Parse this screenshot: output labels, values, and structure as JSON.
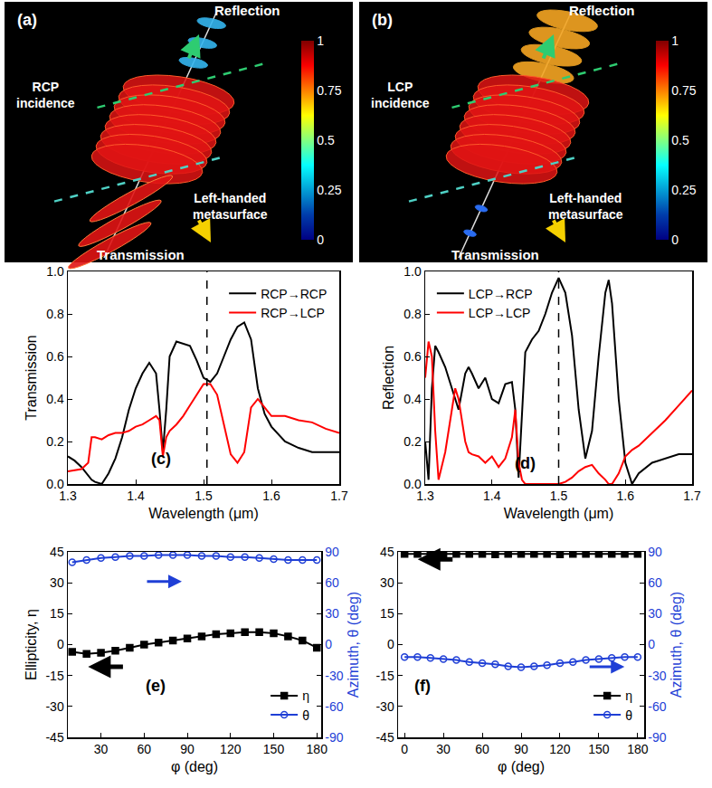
{
  "diagrams": [
    {
      "label": "(a)",
      "reflection": "Reflection",
      "incidence": [
        "RCP",
        "incidence"
      ],
      "metasurface": [
        "Left-handed",
        "metasurface"
      ],
      "transmission": "Transmission",
      "colorbar": {
        "range": [
          0,
          1
        ],
        "ticks": [
          0,
          0.25,
          0.5,
          0.75,
          1
        ]
      }
    },
    {
      "label": "(b)",
      "reflection": "Reflection",
      "incidence": [
        "LCP",
        "incidence"
      ],
      "metasurface": [
        "Left-handed",
        "metasurface"
      ],
      "transmission": "Transmission",
      "colorbar": {
        "range": [
          0,
          1
        ],
        "ticks": [
          0,
          0.25,
          0.5,
          0.75,
          1
        ]
      }
    }
  ],
  "chart_data": [
    {
      "type": "line",
      "label": "(c)",
      "x_label": "Wavelength (μm)",
      "y_label": "Transmission",
      "xlim": [
        1.3,
        1.7
      ],
      "xticks": [
        1.3,
        1.4,
        1.5,
        1.6,
        1.7
      ],
      "ylim": [
        0,
        1
      ],
      "yticks": [
        {
          "value": 0,
          "label": "0.0"
        },
        0.2,
        0.4,
        0.6,
        0.8,
        {
          "value": 1,
          "label": "1.0"
        }
      ],
      "legend": "upper right",
      "vline": 1.505,
      "x": [
        1.3,
        1.31,
        1.32,
        1.33,
        1.335,
        1.34,
        1.35,
        1.36,
        1.37,
        1.38,
        1.39,
        1.4,
        1.41,
        1.42,
        1.43,
        1.435,
        1.44,
        1.445,
        1.45,
        1.46,
        1.47,
        1.48,
        1.49,
        1.5,
        1.51,
        1.52,
        1.53,
        1.54,
        1.55,
        1.56,
        1.57,
        1.58,
        1.59,
        1.6,
        1.62,
        1.64,
        1.66,
        1.68,
        1.7
      ],
      "series": [
        {
          "name": "RCP→RCP",
          "color": "#000000",
          "values": [
            0.13,
            0.11,
            0.08,
            0.04,
            0.02,
            0.01,
            0.0,
            0.05,
            0.12,
            0.22,
            0.35,
            0.45,
            0.52,
            0.57,
            0.52,
            0.35,
            0.15,
            0.35,
            0.6,
            0.67,
            0.66,
            0.65,
            0.58,
            0.5,
            0.48,
            0.52,
            0.6,
            0.68,
            0.74,
            0.76,
            0.68,
            0.45,
            0.33,
            0.27,
            0.2,
            0.17,
            0.15,
            0.15,
            0.15
          ]
        },
        {
          "name": "RCP→LCP",
          "color": "#ff0000",
          "values": [
            0.06,
            0.065,
            0.07,
            0.1,
            0.22,
            0.22,
            0.21,
            0.23,
            0.24,
            0.24,
            0.25,
            0.27,
            0.28,
            0.3,
            0.32,
            0.3,
            0.13,
            0.22,
            0.25,
            0.28,
            0.32,
            0.37,
            0.42,
            0.47,
            0.47,
            0.42,
            0.28,
            0.14,
            0.1,
            0.15,
            0.36,
            0.4,
            0.36,
            0.32,
            0.32,
            0.3,
            0.29,
            0.26,
            0.24
          ]
        }
      ]
    },
    {
      "type": "line",
      "label": "(d)",
      "x_label": "Wavelength (μm)",
      "y_label": "Reflection",
      "xlim": [
        1.3,
        1.7
      ],
      "xticks": [
        1.3,
        1.4,
        1.5,
        1.6,
        1.7
      ],
      "ylim": [
        0,
        1
      ],
      "yticks": [
        {
          "value": 0,
          "label": "0.0"
        },
        0.2,
        0.4,
        0.6,
        0.8,
        {
          "value": 1,
          "label": "1.0"
        }
      ],
      "legend": "upper left",
      "vline": 1.5,
      "x": [
        1.3,
        1.305,
        1.31,
        1.315,
        1.32,
        1.33,
        1.34,
        1.345,
        1.35,
        1.36,
        1.365,
        1.37,
        1.38,
        1.39,
        1.4,
        1.41,
        1.42,
        1.43,
        1.435,
        1.44,
        1.445,
        1.45,
        1.46,
        1.47,
        1.48,
        1.49,
        1.5,
        1.51,
        1.52,
        1.53,
        1.54,
        1.55,
        1.56,
        1.57,
        1.575,
        1.58,
        1.59,
        1.6,
        1.61,
        1.62,
        1.64,
        1.66,
        1.68,
        1.7
      ],
      "series": [
        {
          "name": "LCP→RCP",
          "color": "#000000",
          "values": [
            0.2,
            0.02,
            0.45,
            0.65,
            0.62,
            0.55,
            0.45,
            0.4,
            0.35,
            0.52,
            0.55,
            0.52,
            0.45,
            0.5,
            0.4,
            0.38,
            0.47,
            0.48,
            0.35,
            0.03,
            0.35,
            0.62,
            0.68,
            0.72,
            0.8,
            0.9,
            0.97,
            0.9,
            0.7,
            0.35,
            0.12,
            0.25,
            0.6,
            0.9,
            0.96,
            0.85,
            0.4,
            0.1,
            0.0,
            0.05,
            0.1,
            0.12,
            0.14,
            0.14
          ]
        },
        {
          "name": "LCP→LCP",
          "color": "#ff0000",
          "values": [
            0.5,
            0.67,
            0.6,
            0.25,
            0.02,
            0.15,
            0.35,
            0.45,
            0.4,
            0.2,
            0.15,
            0.14,
            0.13,
            0.1,
            0.13,
            0.08,
            0.12,
            0.22,
            0.35,
            0.1,
            0.02,
            0.0,
            0.0,
            0.0,
            0.0,
            0.0,
            0.0,
            0.01,
            0.03,
            0.06,
            0.08,
            0.09,
            0.05,
            0.02,
            0.0,
            0.0,
            0.05,
            0.13,
            0.16,
            0.18,
            0.24,
            0.3,
            0.37,
            0.44
          ]
        }
      ]
    },
    {
      "type": "line",
      "label": "(e)",
      "x_label": "φ (deg)",
      "y_label": "Ellipticity, η",
      "y2_label": "Azimuth, θ (deg)",
      "xlim": [
        7,
        183
      ],
      "xticks": [
        30,
        60,
        90,
        120,
        150,
        180
      ],
      "ylim": [
        -45,
        45
      ],
      "yticks": [
        -45,
        -30,
        -15,
        0,
        15,
        30,
        45
      ],
      "y2lim": [
        -90,
        90
      ],
      "y2ticks": [
        -90,
        -60,
        -30,
        0,
        30,
        60,
        90
      ],
      "legend": "lower right",
      "x": [
        10,
        20,
        30,
        40,
        50,
        60,
        70,
        80,
        90,
        100,
        110,
        120,
        130,
        140,
        150,
        160,
        170,
        180
      ],
      "series": [
        {
          "name": "η",
          "color": "#000000",
          "marker": "square",
          "values": [
            -3.5,
            -4.5,
            -4,
            -3,
            -1.5,
            0,
            1,
            2,
            3,
            4,
            5,
            5.5,
            6,
            6,
            5.5,
            4,
            2,
            -1.5
          ]
        },
        {
          "name": "θ",
          "color": "#1f3fd6",
          "marker": "open circle",
          "axis": "y2",
          "values": [
            80,
            82,
            84,
            85,
            86,
            86,
            87,
            87,
            87,
            86,
            86,
            85,
            85,
            84,
            83,
            82,
            82,
            82
          ]
        }
      ]
    },
    {
      "type": "line",
      "label": "(f)",
      "x_label": "φ (deg)",
      "y2_label": "Azimuth, θ (deg)",
      "xlim": [
        -5,
        185
      ],
      "xticks": [
        0,
        30,
        60,
        90,
        120,
        150,
        180
      ],
      "ylim": [
        -45,
        45
      ],
      "yticks": [
        -45,
        -30,
        -15,
        0,
        15,
        30,
        45
      ],
      "y2lim": [
        -90,
        90
      ],
      "y2ticks": [
        -90,
        -60,
        -30,
        0,
        30,
        60,
        90
      ],
      "legend": "lower right",
      "x": [
        0,
        10,
        20,
        30,
        40,
        50,
        60,
        70,
        80,
        90,
        100,
        110,
        120,
        130,
        140,
        150,
        160,
        170,
        180
      ],
      "series": [
        {
          "name": "η",
          "color": "#000000",
          "marker": "square",
          "values": [
            44,
            44,
            44,
            43.8,
            44,
            44,
            44,
            43.8,
            44,
            44,
            44,
            44,
            43.8,
            44,
            44,
            44,
            44,
            44,
            44
          ]
        },
        {
          "name": "θ",
          "color": "#1f3fd6",
          "marker": "open circle",
          "axis": "y2",
          "values": [
            -12,
            -12,
            -13,
            -14,
            -15,
            -17,
            -18,
            -19,
            -21,
            -22,
            -21,
            -20,
            -18,
            -17,
            -15,
            -14,
            -13,
            -12,
            -12
          ]
        }
      ]
    }
  ]
}
